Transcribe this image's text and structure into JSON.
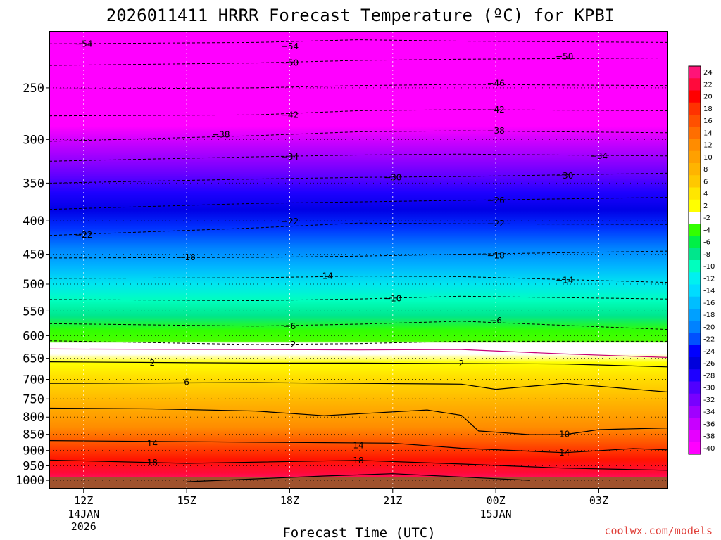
{
  "chart_data": {
    "type": "heatmap",
    "title": "2026011411 HRRR Forecast Temperature (ºC) for KPBI",
    "xlabel": "Forecast Time (UTC)",
    "ylabel": "",
    "y_scale": "log-pressure",
    "ylim": [
      1030,
      205
    ],
    "x_ticks": [
      {
        "label": "12Z",
        "sub1": "14JAN",
        "sub2": "2026",
        "hour": 1
      },
      {
        "label": "15Z",
        "sub1": "",
        "sub2": "",
        "hour": 4
      },
      {
        "label": "18Z",
        "sub1": "",
        "sub2": "",
        "hour": 7
      },
      {
        "label": "21Z",
        "sub1": "",
        "sub2": "",
        "hour": 10
      },
      {
        "label": "00Z",
        "sub1": "15JAN",
        "sub2": "",
        "hour": 13
      },
      {
        "label": "03Z",
        "sub1": "",
        "sub2": "",
        "hour": 16
      }
    ],
    "xlim": [
      0,
      18
    ],
    "y_ticks": [
      {
        "label": "250",
        "p": 250
      },
      {
        "label": "300",
        "p": 300
      },
      {
        "label": "350",
        "p": 350
      },
      {
        "label": "400",
        "p": 400
      },
      {
        "label": "450",
        "p": 450
      },
      {
        "label": "500",
        "p": 500
      },
      {
        "label": "550",
        "p": 550
      },
      {
        "label": "600",
        "p": 600
      },
      {
        "label": "650",
        "p": 650
      },
      {
        "label": "700",
        "p": 700
      },
      {
        "label": "750",
        "p": 750
      },
      {
        "label": "800",
        "p": 800
      },
      {
        "label": "850",
        "p": 850
      },
      {
        "label": "900",
        "p": 900
      },
      {
        "label": "950",
        "p": 950
      },
      {
        "label": "1000",
        "p": 1000
      }
    ],
    "colorbar_labels": [
      "24",
      "22",
      "20",
      "18",
      "16",
      "14",
      "12",
      "10",
      "8",
      "6",
      "4",
      "2",
      "-2",
      "-4",
      "-6",
      "-8",
      "-10",
      "-12",
      "-14",
      "-16",
      "-18",
      "-20",
      "-22",
      "-24",
      "-26",
      "-28",
      "-30",
      "-32",
      "-34",
      "-36",
      "-38",
      "-40"
    ],
    "colorbar_colors": [
      "#ff1478",
      "#ff0a3c",
      "#ff0000",
      "#ff3200",
      "#ff5000",
      "#ff6e00",
      "#ff8c00",
      "#ffa000",
      "#ffb400",
      "#ffc800",
      "#ffe600",
      "#ffff00",
      "#ffffff",
      "#32ff00",
      "#00f046",
      "#00e68c",
      "#00ffbe",
      "#00f0f0",
      "#00dcff",
      "#00beff",
      "#00a0ff",
      "#0082ff",
      "#0050ff",
      "#0000ff",
      "#0000dc",
      "#1e00ff",
      "#5000ff",
      "#7800ff",
      "#a000ff",
      "#c800ff",
      "#e600ff",
      "#ff00ff"
    ],
    "contour_labels": [
      {
        "text": "−54",
        "x": 1,
        "p": 214
      },
      {
        "text": "−54",
        "x": 7,
        "p": 216
      },
      {
        "text": "−50",
        "x": 7,
        "p": 229
      },
      {
        "text": "−50",
        "x": 15,
        "p": 224
      },
      {
        "text": "−46",
        "x": 13,
        "p": 246
      },
      {
        "text": "−42",
        "x": 7,
        "p": 275
      },
      {
        "text": "−42",
        "x": 13,
        "p": 270
      },
      {
        "text": "−38",
        "x": 5,
        "p": 295
      },
      {
        "text": "−38",
        "x": 13,
        "p": 291
      },
      {
        "text": "−34",
        "x": 7,
        "p": 319
      },
      {
        "text": "−34",
        "x": 16,
        "p": 318
      },
      {
        "text": "−30",
        "x": 10,
        "p": 343
      },
      {
        "text": "−30",
        "x": 15,
        "p": 341
      },
      {
        "text": "−26",
        "x": 13,
        "p": 372
      },
      {
        "text": "−22",
        "x": 1,
        "p": 420
      },
      {
        "text": "−22",
        "x": 7,
        "p": 401
      },
      {
        "text": "−22",
        "x": 13,
        "p": 404
      },
      {
        "text": "−18",
        "x": 4,
        "p": 455
      },
      {
        "text": "−18",
        "x": 13,
        "p": 452
      },
      {
        "text": "−14",
        "x": 8,
        "p": 486
      },
      {
        "text": "−14",
        "x": 15,
        "p": 493
      },
      {
        "text": "−10",
        "x": 10,
        "p": 526
      },
      {
        "text": "−6",
        "x": 7,
        "p": 580
      },
      {
        "text": "−6",
        "x": 13,
        "p": 569
      },
      {
        "text": "−2",
        "x": 7,
        "p": 619
      },
      {
        "text": "2",
        "x": 3,
        "p": 660
      },
      {
        "text": "2",
        "x": 12,
        "p": 662
      },
      {
        "text": "6",
        "x": 4,
        "p": 707
      },
      {
        "text": "10",
        "x": 15,
        "p": 850
      },
      {
        "text": "14",
        "x": 3,
        "p": 879
      },
      {
        "text": "14",
        "x": 9,
        "p": 884
      },
      {
        "text": "14",
        "x": 15,
        "p": 907
      },
      {
        "text": "18",
        "x": 3,
        "p": 940
      },
      {
        "text": "18",
        "x": 9,
        "p": 933
      }
    ],
    "isotherms": [
      {
        "value": -54,
        "style": "dash",
        "points": [
          [
            0,
            214
          ],
          [
            6,
            213
          ],
          [
            9,
            211
          ],
          [
            12,
            212
          ],
          [
            18,
            213
          ]
        ]
      },
      {
        "value": -50,
        "style": "dash",
        "points": [
          [
            0,
            231
          ],
          [
            6,
            229
          ],
          [
            9,
            227
          ],
          [
            12,
            226
          ],
          [
            18,
            225
          ]
        ]
      },
      {
        "value": -46,
        "style": "dash",
        "points": [
          [
            0,
            251
          ],
          [
            6,
            250
          ],
          [
            9,
            248
          ],
          [
            12,
            247
          ],
          [
            18,
            248
          ]
        ]
      },
      {
        "value": -42,
        "style": "dash",
        "points": [
          [
            0,
            276
          ],
          [
            6,
            275
          ],
          [
            9,
            271
          ],
          [
            12,
            270
          ],
          [
            18,
            271
          ]
        ]
      },
      {
        "value": -38,
        "style": "dash",
        "points": [
          [
            0,
            302
          ],
          [
            6,
            296
          ],
          [
            9,
            292
          ],
          [
            12,
            291
          ],
          [
            18,
            293
          ]
        ]
      },
      {
        "value": -34,
        "style": "dash",
        "points": [
          [
            0,
            324
          ],
          [
            6,
            319
          ],
          [
            9,
            317
          ],
          [
            12,
            316
          ],
          [
            18,
            318
          ]
        ]
      },
      {
        "value": -30,
        "style": "dash",
        "points": [
          [
            0,
            350
          ],
          [
            6,
            345
          ],
          [
            9,
            343
          ],
          [
            12,
            342
          ],
          [
            18,
            338
          ]
        ]
      },
      {
        "value": -26,
        "style": "dash",
        "points": [
          [
            0,
            384
          ],
          [
            6,
            376
          ],
          [
            9,
            374
          ],
          [
            12,
            372
          ],
          [
            18,
            368
          ]
        ]
      },
      {
        "value": -22,
        "style": "dash",
        "points": [
          [
            0,
            421
          ],
          [
            6,
            410
          ],
          [
            9,
            403
          ],
          [
            12,
            404
          ],
          [
            18,
            405
          ]
        ]
      },
      {
        "value": -18,
        "style": "dash",
        "points": [
          [
            0,
            456
          ],
          [
            6,
            455
          ],
          [
            9,
            453
          ],
          [
            12,
            450
          ],
          [
            18,
            445
          ]
        ]
      },
      {
        "value": -14,
        "style": "dash",
        "points": [
          [
            0,
            490
          ],
          [
            6,
            489
          ],
          [
            9,
            486
          ],
          [
            12,
            487
          ],
          [
            18,
            497
          ]
        ]
      },
      {
        "value": -10,
        "style": "dash",
        "points": [
          [
            0,
            528
          ],
          [
            6,
            530
          ],
          [
            9,
            527
          ],
          [
            12,
            522
          ],
          [
            18,
            527
          ]
        ]
      },
      {
        "value": -6,
        "style": "dash",
        "points": [
          [
            0,
            575
          ],
          [
            6,
            580
          ],
          [
            9,
            576
          ],
          [
            12,
            570
          ],
          [
            18,
            587
          ]
        ]
      },
      {
        "value": -2,
        "style": "dash",
        "points": [
          [
            0,
            611
          ],
          [
            6,
            619
          ],
          [
            9,
            617
          ],
          [
            12,
            612
          ],
          [
            18,
            612
          ]
        ]
      },
      {
        "value": 0,
        "style": "magenta",
        "points": [
          [
            0,
            629
          ],
          [
            6,
            630
          ],
          [
            9,
            631
          ],
          [
            12,
            630
          ],
          [
            15,
            640
          ],
          [
            18,
            648
          ]
        ]
      },
      {
        "value": 2,
        "style": "solid",
        "points": [
          [
            0,
            658
          ],
          [
            6,
            661
          ],
          [
            9,
            661
          ],
          [
            12,
            662
          ],
          [
            15,
            663
          ],
          [
            18,
            670
          ]
        ]
      },
      {
        "value": 6,
        "style": "solid",
        "points": [
          [
            0,
            710
          ],
          [
            6,
            708
          ],
          [
            9,
            710
          ],
          [
            12,
            712
          ],
          [
            13,
            725
          ],
          [
            15,
            710
          ],
          [
            18,
            732
          ]
        ]
      },
      {
        "value": 10,
        "style": "solid",
        "points": [
          [
            0,
            775
          ],
          [
            3,
            777
          ],
          [
            6,
            783
          ],
          [
            8,
            796
          ],
          [
            11,
            780
          ],
          [
            12,
            795
          ],
          [
            12.5,
            840
          ],
          [
            14,
            851
          ],
          [
            15,
            851
          ],
          [
            16,
            836
          ],
          [
            18,
            831
          ]
        ]
      },
      {
        "value": 14,
        "style": "solid",
        "points": [
          [
            0,
            869
          ],
          [
            6,
            874
          ],
          [
            10,
            877
          ],
          [
            12,
            893
          ],
          [
            15,
            907
          ],
          [
            17,
            894
          ],
          [
            18,
            898
          ]
        ]
      },
      {
        "value": 18,
        "style": "solid",
        "points": [
          [
            0,
            931
          ],
          [
            4,
            942
          ],
          [
            9,
            932
          ],
          [
            12,
            944
          ],
          [
            15,
            958
          ],
          [
            18,
            965
          ]
        ]
      },
      {
        "value": 22,
        "style": "solid",
        "points": [
          [
            4,
            1005
          ],
          [
            8,
            985
          ],
          [
            10,
            977
          ],
          [
            14,
            1000
          ]
        ]
      }
    ],
    "credit": "coolwx.com/models"
  }
}
